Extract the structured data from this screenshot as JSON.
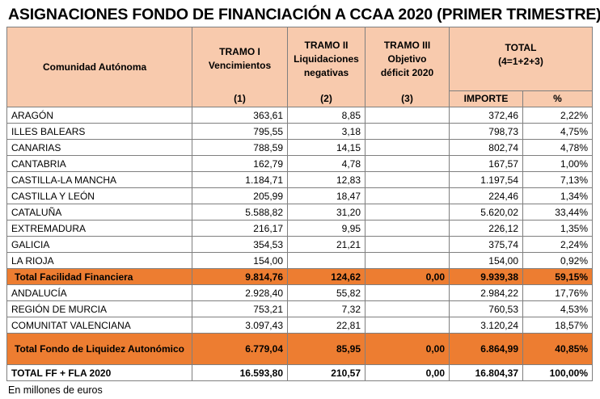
{
  "title": "ASIGNACIONES FONDO DE FINANCIACIÓN A CCAA 2020 (PRIMER TRIMESTRE)",
  "headers": {
    "comunidad": "Comunidad Autónoma",
    "tramo1_line1": "TRAMO I",
    "tramo1_line2": "Vencimientos",
    "tramo1_num": "(1)",
    "tramo2_line1": "TRAMO II",
    "tramo2_line2": "Liquidaciones",
    "tramo2_line3": "negativas",
    "tramo2_num": "(2)",
    "tramo3_line1": "TRAMO III",
    "tramo3_line2": "Objetivo",
    "tramo3_line3": "déficit 2020",
    "tramo3_num": "(3)",
    "total_line1": "TOTAL",
    "total_line2": "(4=1+2+3)",
    "importe": "IMPORTE",
    "pct": "%"
  },
  "rows": [
    {
      "name": "ARAGÓN",
      "t1": "363,61",
      "t2": "8,85",
      "t3": "",
      "importe": "372,46",
      "pct": "2,22%"
    },
    {
      "name": "ILLES BALEARS",
      "t1": "795,55",
      "t2": "3,18",
      "t3": "",
      "importe": "798,73",
      "pct": "4,75%"
    },
    {
      "name": "CANARIAS",
      "t1": "788,59",
      "t2": "14,15",
      "t3": "",
      "importe": "802,74",
      "pct": "4,78%"
    },
    {
      "name": "CANTABRIA",
      "t1": "162,79",
      "t2": "4,78",
      "t3": "",
      "importe": "167,57",
      "pct": "1,00%"
    },
    {
      "name": "CASTILLA-LA MANCHA",
      "t1": "1.184,71",
      "t2": "12,83",
      "t3": "",
      "importe": "1.197,54",
      "pct": "7,13%"
    },
    {
      "name": "CASTILLA Y LEÓN",
      "t1": "205,99",
      "t2": "18,47",
      "t3": "",
      "importe": "224,46",
      "pct": "1,34%"
    },
    {
      "name": "CATALUÑA",
      "t1": "5.588,82",
      "t2": "31,20",
      "t3": "",
      "importe": "5.620,02",
      "pct": "33,44%"
    },
    {
      "name": "EXTREMADURA",
      "t1": "216,17",
      "t2": "9,95",
      "t3": "",
      "importe": "226,12",
      "pct": "1,35%"
    },
    {
      "name": "GALICIA",
      "t1": "354,53",
      "t2": "21,21",
      "t3": "",
      "importe": "375,74",
      "pct": "2,24%"
    },
    {
      "name": "LA RIOJA",
      "t1": "154,00",
      "t2": "",
      "t3": "",
      "importe": "154,00",
      "pct": "0,92%"
    }
  ],
  "total_ff": {
    "name": "Total Facilidad Financiera",
    "t1": "9.814,76",
    "t2": "124,62",
    "t3": "0,00",
    "importe": "9.939,38",
    "pct": "59,15%"
  },
  "rows_fla": [
    {
      "name": "ANDALUCÍA",
      "t1": "2.928,40",
      "t2": "55,82",
      "t3": "",
      "importe": "2.984,22",
      "pct": "17,76%"
    },
    {
      "name": "REGIÓN DE MURCIA",
      "t1": "753,21",
      "t2": "7,32",
      "t3": "",
      "importe": "760,53",
      "pct": "4,53%"
    },
    {
      "name": "COMUNITAT VALENCIANA",
      "t1": "3.097,43",
      "t2": "22,81",
      "t3": "",
      "importe": "3.120,24",
      "pct": "18,57%"
    }
  ],
  "total_fla": {
    "name": "Total Fondo de Liquidez Autonómico",
    "t1": "6.779,04",
    "t2": "85,95",
    "t3": "0,00",
    "importe": "6.864,99",
    "pct": "40,85%"
  },
  "grand_total": {
    "name": "TOTAL FF + FLA 2020",
    "t1": "16.593,80",
    "t2": "210,57",
    "t3": "0,00",
    "importe": "16.804,37",
    "pct": "100,00%"
  },
  "footnote": "En millones de euros",
  "colors": {
    "header_bg": "#f8caad",
    "subtotal_bg": "#ed7d31",
    "border": "#7f7f7f"
  }
}
